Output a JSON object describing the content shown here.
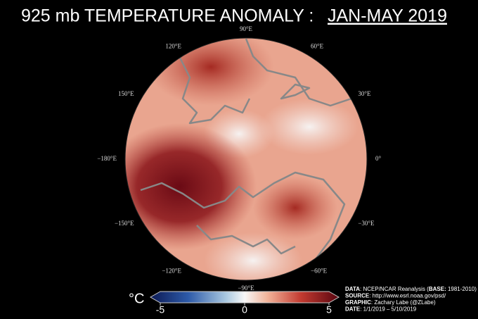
{
  "title": {
    "text": "925 mb TEMPERATURE ANOMALY :",
    "period": "JAN-MAY 2019"
  },
  "longitude_labels": [
    "90°E",
    "60°E",
    "30°E",
    "0°",
    "−30°E",
    "−60°E",
    "−90°E",
    "−120°E",
    "−150°E",
    "−180°E",
    "150°E",
    "120°E"
  ],
  "colorbar": {
    "unit": "°C",
    "range": [
      -5,
      5
    ],
    "ticks": [
      -5,
      0,
      5
    ]
  },
  "credits": [
    {
      "label": "DATA",
      "text": ": NCEP/NCAR Reanalysis (",
      "label2": "BASE:",
      "text2": " 1981-2010)"
    },
    {
      "label": "SOURCE",
      "text": ": http://www.esrl.noaa.gov/psd/"
    },
    {
      "label": "GRAPHIC",
      "text": ": Zachary Labe (@ZLabe)"
    },
    {
      "label": "DATE",
      "text": ": 1/1/2019 – 5/10/2019"
    }
  ]
}
